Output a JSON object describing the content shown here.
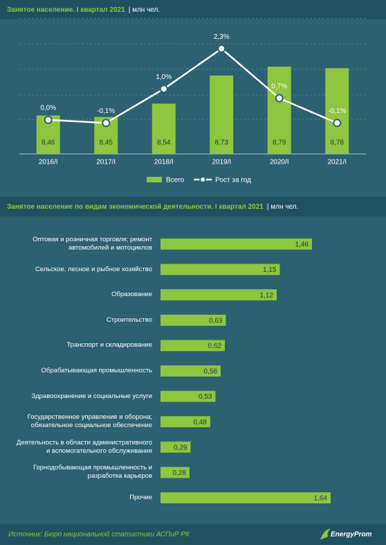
{
  "chart_data": [
    {
      "type": "combo",
      "title": "Занятое население. I квартал 2021",
      "subtitle": "| млн чел.",
      "categories": [
        "2016/I",
        "2017/I",
        "2018/I",
        "2019/I",
        "2020/I",
        "2021/I"
      ],
      "series": [
        {
          "name": "Всего",
          "type": "bar",
          "color": "#8dc63f",
          "values": [
            8.46,
            8.45,
            8.54,
            8.73,
            8.79,
            8.78
          ],
          "value_labels": [
            "8,46",
            "8,45",
            "8,54",
            "8,73",
            "8,79",
            "8,78"
          ]
        },
        {
          "name": "Рост за год",
          "type": "line",
          "axis": "y2",
          "color": "#ffffff",
          "values": [
            0.0,
            -0.1,
            1.0,
            2.3,
            0.7,
            -0.1
          ],
          "value_labels": [
            "0,0%",
            "-0,1%",
            "1,0%",
            "2,3%",
            "0,7%",
            "-0,1%"
          ]
        }
      ],
      "ylim": [
        8.2,
        9.1
      ],
      "y2lim": [
        -1.1,
        3.2
      ]
    },
    {
      "type": "barh",
      "title": "Занятое население по видам экономической деятельности. I квартал 2021",
      "subtitle": "| млн чел.",
      "categories": [
        "Оптовая и розничная торговля; ремонт\nавтомобилей и мотоциклов",
        "Сельское, лесное и рыбное хозяйство",
        "Образование",
        "Строительство",
        "Транспорт и складирование",
        "Обрабатывающая промышленность",
        "Здравоохранение и социальные услуги",
        "Государственное управление и оборона;\nобязательное социальное обеспечение",
        "Деятельность в области административного\nи вспомогательного обслуживания",
        "Горнодобывающая промышленность и\nразработка карьеров",
        "Прочие"
      ],
      "values": [
        1.46,
        1.15,
        1.12,
        0.63,
        0.62,
        0.58,
        0.53,
        0.48,
        0.29,
        0.28,
        1.64
      ],
      "value_labels": [
        "1,46",
        "1,15",
        "1,12",
        "0,63",
        "0,62",
        "0,58",
        "0,53",
        "0,48",
        "0,29",
        "0,28",
        "1,64"
      ],
      "color": "#8dc63f",
      "xlim": [
        0,
        2
      ]
    }
  ],
  "footer": {
    "source": "Источник: Бюро национальной  статистики АСПиР РК",
    "logo": "EnergyProm"
  }
}
